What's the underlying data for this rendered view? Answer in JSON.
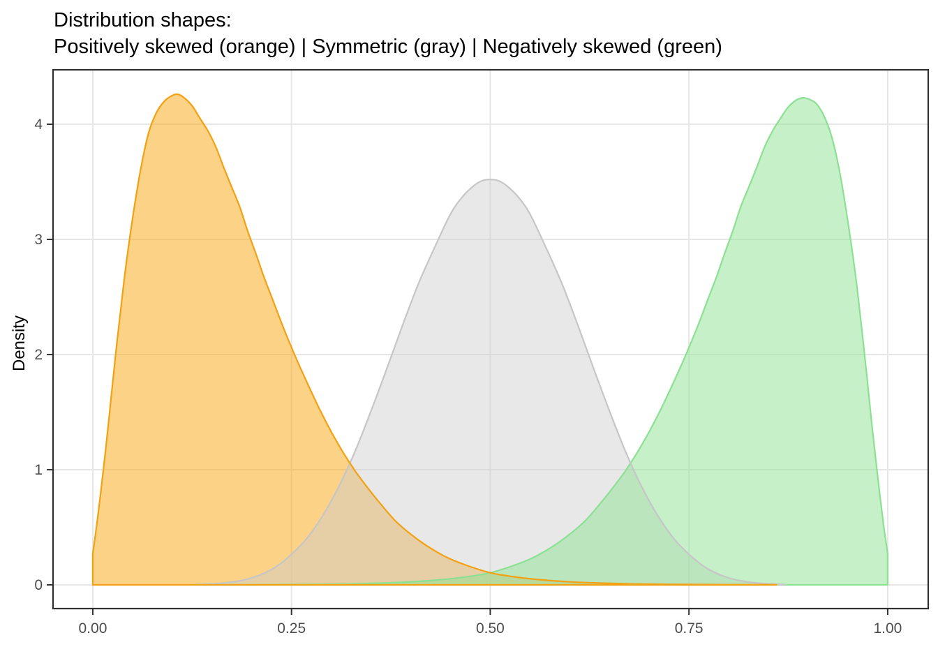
{
  "title": {
    "line1": "Distribution shapes:",
    "line2": "Positively skewed (orange) | Symmetric (gray) | Negatively skewed (green)"
  },
  "axes": {
    "x": {
      "title": "",
      "ticks": [
        0,
        0.25,
        0.5,
        0.75,
        1.0
      ],
      "tick_labels": [
        "0.00",
        "0.25",
        "0.50",
        "0.75",
        "1.00"
      ]
    },
    "y": {
      "title": "Density",
      "ticks": [
        0,
        1,
        2,
        3,
        4
      ],
      "tick_labels": [
        "0",
        "1",
        "2",
        "3",
        "4"
      ]
    }
  },
  "style": {
    "background": "#FFFFFF",
    "grid_color": "#E6E6E6",
    "border_color": "#303030",
    "tick_color": "#333333",
    "tick_label_color": "#4D4D4D",
    "title_color": "#000000"
  },
  "chart_data": {
    "type": "area",
    "title": "Distribution shapes: Positively skewed (orange) | Symmetric (gray) | Negatively skewed (green)",
    "xlabel": "",
    "ylabel": "Density",
    "x_domain": [
      -0.05,
      1.051
    ],
    "y_domain": [
      -0.206,
      4.473
    ],
    "grid": "major-only",
    "legend": "none (colors described in title)",
    "series": [
      {
        "name": "Positively skewed",
        "color_name": "orange",
        "stroke": "#F2A113",
        "fill": "rgba(250,166,16,0.5)",
        "peak": {
          "x": 0.105,
          "y": 4.26
        },
        "points": [
          [
            0.0,
            0.27
          ],
          [
            0.005,
            0.52
          ],
          [
            0.01,
            0.8
          ],
          [
            0.015,
            1.1
          ],
          [
            0.02,
            1.42
          ],
          [
            0.03,
            2.08
          ],
          [
            0.04,
            2.68
          ],
          [
            0.05,
            3.18
          ],
          [
            0.06,
            3.6
          ],
          [
            0.07,
            3.92
          ],
          [
            0.08,
            4.1
          ],
          [
            0.09,
            4.2
          ],
          [
            0.1,
            4.25
          ],
          [
            0.107,
            4.26
          ],
          [
            0.115,
            4.23
          ],
          [
            0.125,
            4.16
          ],
          [
            0.135,
            4.05
          ],
          [
            0.145,
            3.94
          ],
          [
            0.155,
            3.8
          ],
          [
            0.165,
            3.62
          ],
          [
            0.175,
            3.45
          ],
          [
            0.185,
            3.28
          ],
          [
            0.195,
            3.07
          ],
          [
            0.205,
            2.88
          ],
          [
            0.215,
            2.68
          ],
          [
            0.225,
            2.5
          ],
          [
            0.24,
            2.23
          ],
          [
            0.255,
            1.98
          ],
          [
            0.27,
            1.75
          ],
          [
            0.285,
            1.53
          ],
          [
            0.3,
            1.33
          ],
          [
            0.315,
            1.15
          ],
          [
            0.33,
            0.99
          ],
          [
            0.345,
            0.85
          ],
          [
            0.36,
            0.72
          ],
          [
            0.38,
            0.56
          ],
          [
            0.4,
            0.44
          ],
          [
            0.42,
            0.34
          ],
          [
            0.445,
            0.24
          ],
          [
            0.47,
            0.17
          ],
          [
            0.5,
            0.105
          ],
          [
            0.53,
            0.07
          ],
          [
            0.56,
            0.046
          ],
          [
            0.6,
            0.026
          ],
          [
            0.64,
            0.015
          ],
          [
            0.68,
            0.008
          ],
          [
            0.72,
            0.005
          ],
          [
            0.76,
            0.003
          ],
          [
            0.8,
            0.002
          ],
          [
            0.86,
            0.001
          ]
        ]
      },
      {
        "name": "Symmetric",
        "color_name": "gray",
        "stroke": "#C6C6C6",
        "fill": "rgba(205,205,205,0.45)",
        "peak": {
          "x": 0.5,
          "y": 3.52
        },
        "points": [
          [
            0.13,
            0.004
          ],
          [
            0.15,
            0.009
          ],
          [
            0.17,
            0.02
          ],
          [
            0.19,
            0.042
          ],
          [
            0.21,
            0.085
          ],
          [
            0.23,
            0.155
          ],
          [
            0.25,
            0.265
          ],
          [
            0.27,
            0.41
          ],
          [
            0.29,
            0.61
          ],
          [
            0.31,
            0.86
          ],
          [
            0.33,
            1.16
          ],
          [
            0.35,
            1.51
          ],
          [
            0.37,
            1.88
          ],
          [
            0.39,
            2.26
          ],
          [
            0.41,
            2.62
          ],
          [
            0.43,
            2.93
          ],
          [
            0.45,
            3.22
          ],
          [
            0.465,
            3.37
          ],
          [
            0.48,
            3.47
          ],
          [
            0.49,
            3.51
          ],
          [
            0.5,
            3.52
          ],
          [
            0.51,
            3.51
          ],
          [
            0.52,
            3.47
          ],
          [
            0.535,
            3.37
          ],
          [
            0.55,
            3.22
          ],
          [
            0.57,
            2.93
          ],
          [
            0.59,
            2.62
          ],
          [
            0.61,
            2.26
          ],
          [
            0.63,
            1.88
          ],
          [
            0.65,
            1.51
          ],
          [
            0.67,
            1.16
          ],
          [
            0.69,
            0.86
          ],
          [
            0.71,
            0.61
          ],
          [
            0.73,
            0.41
          ],
          [
            0.75,
            0.265
          ],
          [
            0.77,
            0.155
          ],
          [
            0.79,
            0.085
          ],
          [
            0.81,
            0.042
          ],
          [
            0.83,
            0.02
          ],
          [
            0.85,
            0.009
          ],
          [
            0.87,
            0.004
          ]
        ]
      },
      {
        "name": "Negatively skewed",
        "color_name": "green",
        "stroke": "#8CE093",
        "fill": "rgba(140,225,145,0.5)",
        "peak": {
          "x": 0.895,
          "y": 4.23
        },
        "points": [
          [
            0.14,
            0.001
          ],
          [
            0.2,
            0.002
          ],
          [
            0.24,
            0.003
          ],
          [
            0.28,
            0.005
          ],
          [
            0.32,
            0.008
          ],
          [
            0.36,
            0.015
          ],
          [
            0.4,
            0.026
          ],
          [
            0.44,
            0.046
          ],
          [
            0.47,
            0.07
          ],
          [
            0.5,
            0.105
          ],
          [
            0.53,
            0.17
          ],
          [
            0.555,
            0.24
          ],
          [
            0.58,
            0.34
          ],
          [
            0.6,
            0.44
          ],
          [
            0.62,
            0.56
          ],
          [
            0.64,
            0.72
          ],
          [
            0.655,
            0.85
          ],
          [
            0.67,
            0.99
          ],
          [
            0.685,
            1.15
          ],
          [
            0.7,
            1.33
          ],
          [
            0.715,
            1.53
          ],
          [
            0.73,
            1.75
          ],
          [
            0.745,
            1.98
          ],
          [
            0.76,
            2.23
          ],
          [
            0.775,
            2.5
          ],
          [
            0.785,
            2.68
          ],
          [
            0.795,
            2.88
          ],
          [
            0.805,
            3.07
          ],
          [
            0.815,
            3.28
          ],
          [
            0.825,
            3.45
          ],
          [
            0.835,
            3.62
          ],
          [
            0.845,
            3.8
          ],
          [
            0.855,
            3.94
          ],
          [
            0.865,
            4.05
          ],
          [
            0.875,
            4.15
          ],
          [
            0.885,
            4.21
          ],
          [
            0.893,
            4.23
          ],
          [
            0.9,
            4.22
          ],
          [
            0.91,
            4.18
          ],
          [
            0.92,
            4.07
          ],
          [
            0.93,
            3.88
          ],
          [
            0.94,
            3.57
          ],
          [
            0.95,
            3.15
          ],
          [
            0.96,
            2.66
          ],
          [
            0.97,
            2.06
          ],
          [
            0.98,
            1.4
          ],
          [
            0.985,
            1.09
          ],
          [
            0.99,
            0.79
          ],
          [
            0.995,
            0.51
          ],
          [
            1.0,
            0.27
          ]
        ]
      }
    ]
  }
}
